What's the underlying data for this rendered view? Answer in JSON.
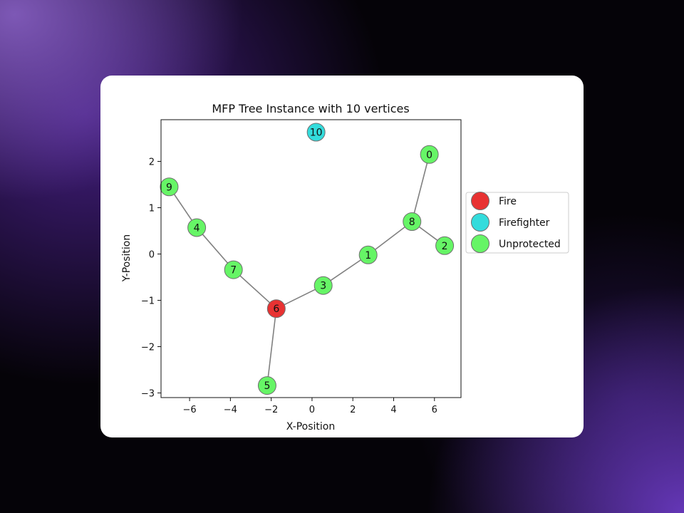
{
  "chart_data": {
    "type": "scatter",
    "title": "MFP Tree Instance with 10 vertices",
    "xlabel": "X-Position",
    "ylabel": "Y-Position",
    "xlim": [
      -7.4,
      7.3
    ],
    "ylim": [
      -3.1,
      2.9
    ],
    "xticks": [
      -6,
      -4,
      -2,
      0,
      2,
      4,
      6
    ],
    "xtick_labels": [
      "−6",
      "−4",
      "−2",
      "0",
      "2",
      "4",
      "6"
    ],
    "yticks": [
      -3,
      -2,
      -1,
      0,
      1,
      2
    ],
    "ytick_labels": [
      "−3",
      "−2",
      "−1",
      "0",
      "1",
      "2"
    ],
    "grid": false,
    "legend_position": "right",
    "colors": {
      "Fire": "#e83232",
      "Firefighter": "#33dcdc",
      "Unprotected": "#66f566",
      "edge": "#808080",
      "node_border": "#6f6f6f"
    },
    "legend": [
      "Fire",
      "Firefighter",
      "Unprotected"
    ],
    "nodes": [
      {
        "label": "0",
        "x": 5.75,
        "y": 2.15,
        "status": "Unprotected"
      },
      {
        "label": "1",
        "x": 2.75,
        "y": -0.02,
        "status": "Unprotected"
      },
      {
        "label": "2",
        "x": 6.5,
        "y": 0.18,
        "status": "Unprotected"
      },
      {
        "label": "3",
        "x": 0.55,
        "y": -0.68,
        "status": "Unprotected"
      },
      {
        "label": "4",
        "x": -5.65,
        "y": 0.57,
        "status": "Unprotected"
      },
      {
        "label": "5",
        "x": -2.2,
        "y": -2.84,
        "status": "Unprotected"
      },
      {
        "label": "6",
        "x": -1.75,
        "y": -1.18,
        "status": "Fire"
      },
      {
        "label": "7",
        "x": -3.85,
        "y": -0.34,
        "status": "Unprotected"
      },
      {
        "label": "8",
        "x": 4.9,
        "y": 0.7,
        "status": "Unprotected"
      },
      {
        "label": "9",
        "x": -7.0,
        "y": 1.45,
        "status": "Unprotected"
      },
      {
        "label": "10",
        "x": 0.2,
        "y": 2.63,
        "status": "Firefighter"
      }
    ],
    "edges": [
      [
        "9",
        "4"
      ],
      [
        "4",
        "7"
      ],
      [
        "7",
        "6"
      ],
      [
        "6",
        "5"
      ],
      [
        "6",
        "3"
      ],
      [
        "3",
        "1"
      ],
      [
        "1",
        "8"
      ],
      [
        "8",
        "0"
      ],
      [
        "8",
        "2"
      ]
    ]
  }
}
